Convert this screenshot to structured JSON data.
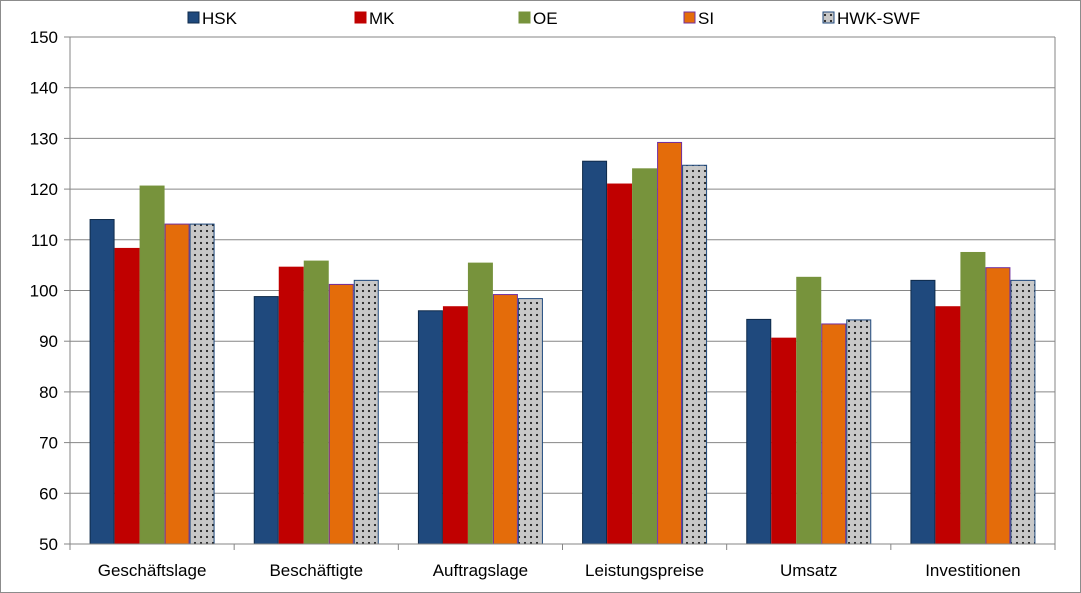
{
  "chart_data": {
    "type": "bar",
    "categories": [
      "Geschäftslage",
      "Beschäftigte",
      "Auftragslage",
      "Leistungspreise",
      "Umsatz",
      "Investitionen"
    ],
    "series": [
      {
        "name": "HSK",
        "values": [
          114,
          98.8,
          96,
          125.5,
          94.3,
          102
        ],
        "color": "#1f497d",
        "stroke": "#0f2a4a",
        "pattern": "solid"
      },
      {
        "name": "MK",
        "values": [
          108.3,
          104.6,
          96.8,
          121,
          90.6,
          96.8
        ],
        "color": "#c00000",
        "stroke": "#c00000",
        "pattern": "solid"
      },
      {
        "name": "OE",
        "values": [
          120.6,
          105.8,
          105.4,
          124,
          102.6,
          107.5
        ],
        "color": "#77933c",
        "stroke": "#77933c",
        "pattern": "solid"
      },
      {
        "name": "SI",
        "values": [
          113.1,
          101.2,
          99.2,
          129.2,
          93.4,
          104.5
        ],
        "color": "#e46c0a",
        "stroke": "#7030a0",
        "pattern": "solid"
      },
      {
        "name": "HWK-SWF",
        "values": [
          113.1,
          102,
          98.4,
          124.7,
          94.2,
          102
        ],
        "color": "#c8c8c8",
        "stroke": "#1f497d",
        "pattern": "dots"
      }
    ],
    "ylim": [
      50,
      150
    ],
    "yticks": [
      "50",
      "60",
      "70",
      "80",
      "90",
      "100",
      "110",
      "120",
      "130",
      "140",
      "150"
    ],
    "grid": true,
    "legend_position": "top"
  }
}
